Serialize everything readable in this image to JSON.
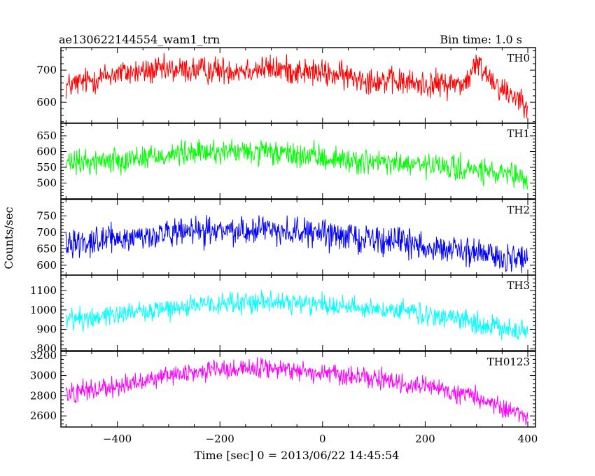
{
  "header": {
    "title": "ae130622144554_wam1_trn",
    "bin_time": "Bin time: 1.0 s"
  },
  "chart_data": {
    "type": "line",
    "ylabel": "Counts/sec",
    "xlabel": "Time [sec] 0 = 2013/06/22 14:45:54",
    "xlim": [
      -510,
      415
    ],
    "x_ticks": [
      -400,
      -200,
      0,
      200,
      400
    ],
    "x_tick_labels": [
      "−400",
      "−200",
      "0",
      "200",
      "400"
    ],
    "x_minor_step": 50,
    "x_start": -500,
    "x_end": 400,
    "panels": [
      {
        "name": "TH0",
        "color": "#ff0000",
        "ylim": [
          535,
          770
        ],
        "yticks": [
          600,
          700
        ],
        "ytick_labels": [
          "600",
          "700"
        ],
        "trend_x": [
          -500,
          -400,
          -300,
          -200,
          -100,
          0,
          100,
          200,
          280,
          300,
          320,
          350,
          400
        ],
        "trend_y": [
          650,
          690,
          700,
          700,
          705,
          690,
          670,
          655,
          660,
          720,
          690,
          640,
          600
        ],
        "noise": 30
      },
      {
        "name": "TH1",
        "color": "#00ff00",
        "ylim": [
          450,
          690
        ],
        "yticks": [
          500,
          550,
          600,
          650
        ],
        "ytick_labels": [
          "500",
          "550",
          "600",
          "650"
        ],
        "trend_x": [
          -500,
          -400,
          -300,
          -200,
          -100,
          0,
          100,
          200,
          300,
          400
        ],
        "trend_y": [
          560,
          575,
          590,
          600,
          595,
          580,
          565,
          555,
          540,
          510
        ],
        "noise": 28
      },
      {
        "name": "TH2",
        "color": "#0000ff",
        "ylim": [
          570,
          800
        ],
        "yticks": [
          600,
          650,
          700,
          750
        ],
        "ytick_labels": [
          "600",
          "650",
          "700",
          "750"
        ],
        "trend_x": [
          -500,
          -400,
          -300,
          -200,
          -100,
          0,
          100,
          200,
          300,
          400
        ],
        "trend_y": [
          670,
          680,
          695,
          705,
          710,
          695,
          680,
          660,
          635,
          615
        ],
        "noise": 30
      },
      {
        "name": "TH3",
        "color": "#00ffff",
        "ylim": [
          790,
          1180
        ],
        "yticks": [
          800,
          900,
          1000,
          1100
        ],
        "ytick_labels": [
          "800",
          "900",
          "1000",
          "1100"
        ],
        "trend_x": [
          -500,
          -400,
          -300,
          -200,
          -100,
          0,
          100,
          200,
          300,
          400
        ],
        "trend_y": [
          950,
          980,
          1010,
          1030,
          1040,
          1030,
          1010,
          975,
          935,
          880
        ],
        "noise": 40
      },
      {
        "name": "TH0123",
        "color": "#ff00ff",
        "ylim": [
          2490,
          3240
        ],
        "yticks": [
          2600,
          2800,
          3000,
          3200
        ],
        "ytick_labels": [
          "2600",
          "2800",
          "3000",
          "3200"
        ],
        "trend_x": [
          -500,
          -400,
          -300,
          -200,
          -100,
          0,
          100,
          200,
          300,
          400
        ],
        "trend_y": [
          2830,
          2900,
          3000,
          3060,
          3080,
          3020,
          2960,
          2890,
          2780,
          2600
        ],
        "noise": 70
      }
    ]
  }
}
